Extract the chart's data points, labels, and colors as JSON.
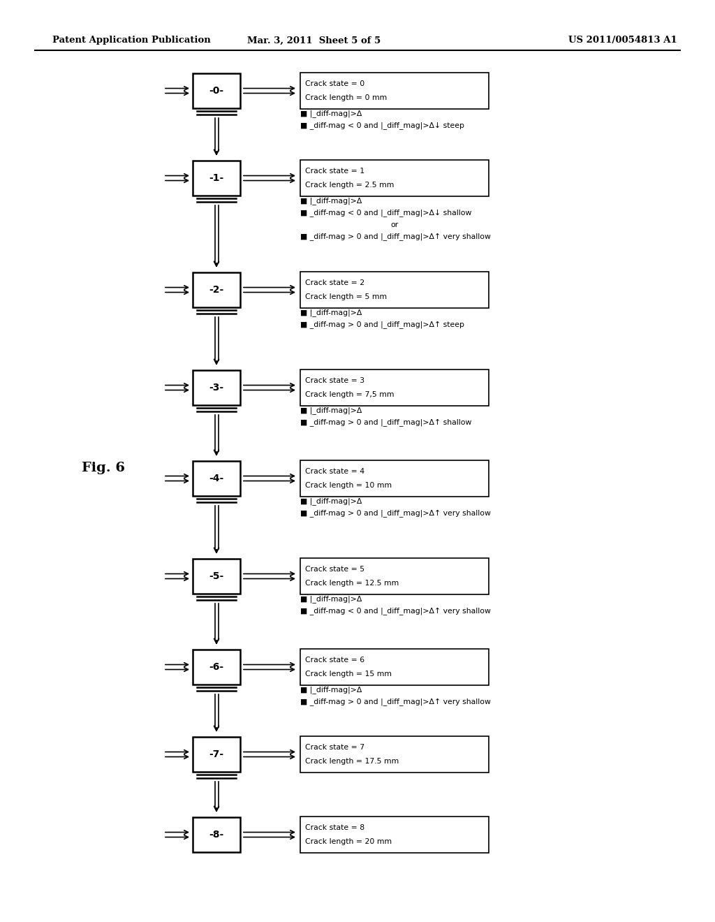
{
  "title_left": "Patent Application Publication",
  "title_mid": "Mar. 3, 2011  Sheet 5 of 5",
  "title_right": "US 2011/0054813 A1",
  "fig_label": "Fig. 6",
  "states": [
    {
      "num": "-0-",
      "crack_state": 0,
      "crack_length": "0 mm"
    },
    {
      "num": "-1-",
      "crack_state": 1,
      "crack_length": "2.5 mm"
    },
    {
      "num": "-2-",
      "crack_state": 2,
      "crack_length": "5 mm"
    },
    {
      "num": "-3-",
      "crack_state": 3,
      "crack_length": "7,5 mm"
    },
    {
      "num": "-4-",
      "crack_state": 4,
      "crack_length": "10 mm"
    },
    {
      "num": "-5-",
      "crack_state": 5,
      "crack_length": "12.5 mm"
    },
    {
      "num": "-6-",
      "crack_state": 6,
      "crack_length": "15 mm"
    },
    {
      "num": "-7-",
      "crack_state": 7,
      "crack_length": "17.5 mm"
    },
    {
      "num": "-8-",
      "crack_state": 8,
      "crack_length": "20 mm"
    }
  ],
  "transitions": [
    {
      "lines": [
        "■ |_diff-mag|>Δ",
        "■ _diff-mag < 0 and |_diff_mag|>Δ↓ steep"
      ],
      "or_index": -1
    },
    {
      "lines": [
        "■ |_diff-mag|>Δ",
        "■ _diff-mag < 0 and |_diff_mag|>Δ↓ shallow",
        "or",
        "■ _diff-mag > 0 and |_diff_mag|>Δ↑ very shallow"
      ],
      "or_index": 2
    },
    {
      "lines": [
        "■ |_diff-mag|>Δ",
        "■ _diff-mag > 0 and |_diff_mag|>Δ↑ steep"
      ],
      "or_index": -1
    },
    {
      "lines": [
        "■ |_diff-mag|>Δ",
        "■ _diff-mag > 0 and |_diff_mag|>Δ↑ shallow"
      ],
      "or_index": -1
    },
    {
      "lines": [
        "■ |_diff-mag|>Δ",
        "■ _diff-mag > 0 and |_diff_mag|>Δ↑ very shallow"
      ],
      "or_index": -1
    },
    {
      "lines": [
        "■ |_diff-mag|>Δ",
        "■ _diff-mag < 0 and |_diff_mag|>Δ↑ very shallow"
      ],
      "or_index": -1
    },
    {
      "lines": [
        "■ |_diff-mag|>Δ",
        "■ _diff-mag > 0 and |_diff_mag|>Δ↑ very shallow"
      ],
      "or_index": -1
    },
    {
      "lines": [],
      "or_index": -1
    }
  ],
  "background_color": "#ffffff",
  "text_color": "#000000"
}
